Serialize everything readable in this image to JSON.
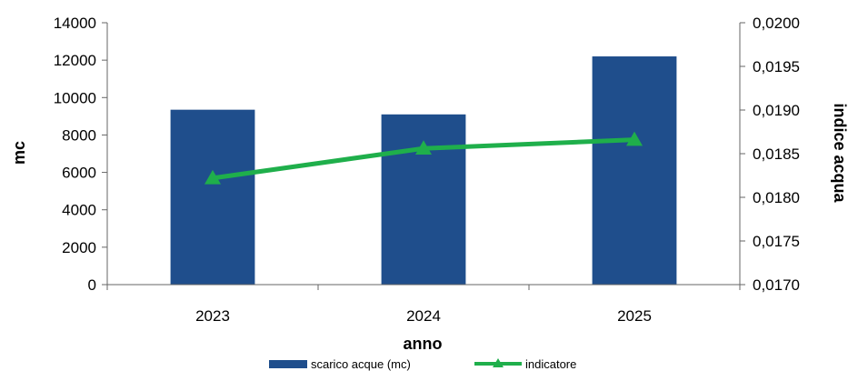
{
  "chart_data": {
    "type": "bar",
    "categories": [
      "2023",
      "2024",
      "2025"
    ],
    "series": [
      {
        "name": "scarico acque (mc)",
        "type": "bar",
        "axis": "left",
        "values": [
          9350,
          9100,
          12200
        ],
        "color": "#1F4E8C"
      },
      {
        "name": "indicatore",
        "type": "line",
        "axis": "right",
        "marker": "triangle",
        "values": [
          0.01822,
          0.01856,
          0.01866
        ],
        "color": "#1FAF4B"
      }
    ],
    "xlabel": "anno",
    "ylabel": "mc",
    "ylabel_right": "indice acqua",
    "ylim": [
      0,
      14000
    ],
    "ylim_right": [
      0.017,
      0.02
    ],
    "yticks": [
      "0",
      "2000",
      "4000",
      "6000",
      "8000",
      "10000",
      "12000",
      "14000"
    ],
    "yticks_right": [
      "0,0170",
      "0,0175",
      "0,0180",
      "0,0185",
      "0,0190",
      "0,0195",
      "0,0200"
    ],
    "grid": false,
    "legend_position": "bottom"
  }
}
